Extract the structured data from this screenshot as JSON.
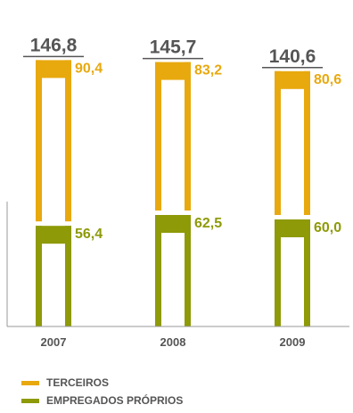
{
  "colors": {
    "terceiros": "#E8A90F",
    "empregados": "#8E9A08",
    "total_text": "#555555",
    "axis": "#9a9a9a"
  },
  "chart_data": {
    "type": "bar",
    "stacked": true,
    "categories": [
      "2007",
      "2008",
      "2009"
    ],
    "totals": [
      "146,8",
      "145,7",
      "140,6"
    ],
    "series": [
      {
        "name": "EMPREGADOS PRÓPRIOS",
        "key": "empregados",
        "values": [
          56.4,
          62.5,
          60.0
        ],
        "labels": [
          "56,4",
          "62,5",
          "60,0"
        ]
      },
      {
        "name": "TERCEIROS",
        "key": "terceiros",
        "values": [
          90.4,
          83.2,
          80.6
        ],
        "labels": [
          "90,4",
          "83,2",
          "80,6"
        ]
      }
    ],
    "ylim": [
      0,
      150
    ],
    "grid": false,
    "legend_position": "bottom-left"
  },
  "legend": [
    {
      "label": "TERCEIROS",
      "color": "#E8A90F"
    },
    {
      "label": "EMPREGADOS PRÓPRIOS",
      "color": "#8E9A08"
    }
  ]
}
